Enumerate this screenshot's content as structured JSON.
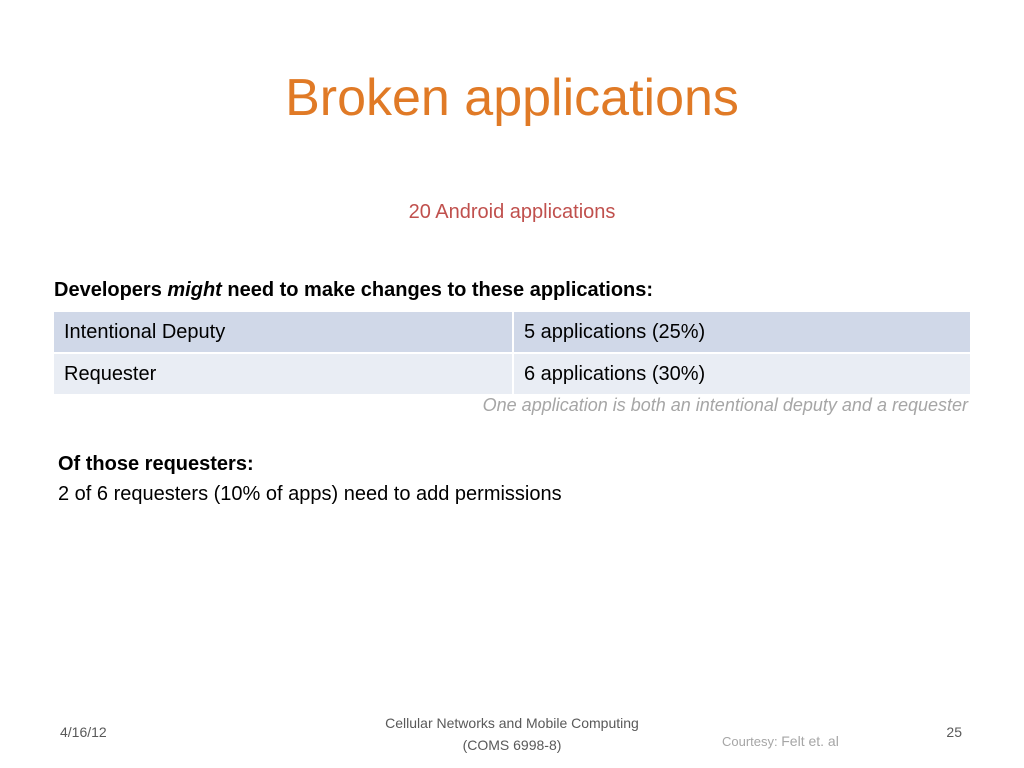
{
  "slide": {
    "title": "Broken applications",
    "subtitle": "20 Android applications",
    "lead": {
      "before": "Developers ",
      "emphasis": "might",
      "after": " need to make changes to these applications:"
    },
    "table": {
      "rows": [
        {
          "label": "Intentional Deputy",
          "value": "5 applications (25%)"
        },
        {
          "label": "Requester",
          "value": "6 applications (30%)"
        }
      ]
    },
    "note": "One application is both an intentional deputy and a requester",
    "section": {
      "heading": "Of those requesters:",
      "body": "2 of 6 requesters (10% of apps) need to add permissions"
    }
  },
  "footer": {
    "date": "4/16/12",
    "course_line1": "Cellular Networks and Mobile Computing",
    "course_line2": "(COMS 6998-8)",
    "courtesy_label": "Courtesy: ",
    "courtesy_author": "Felt et. al",
    "page_number": "25"
  },
  "colors": {
    "title": "#e07a26",
    "subtitle": "#c0504d",
    "table_row_1": "#d0d8e8",
    "table_row_2": "#e9edf4",
    "note": "#a6a6a6"
  }
}
